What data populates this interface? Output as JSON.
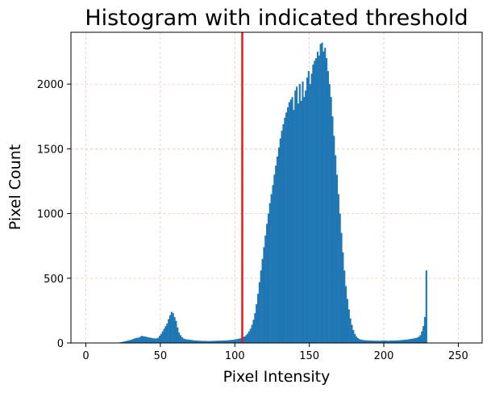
{
  "chart_data": {
    "type": "bar",
    "title": "Histogram with indicated threshold",
    "xlabel": "Pixel Intensity",
    "ylabel": "Pixel Count",
    "xlim": [
      -10,
      266
    ],
    "ylim": [
      0,
      2400
    ],
    "xticks": [
      0,
      50,
      100,
      150,
      200,
      250
    ],
    "yticks": [
      0,
      500,
      1000,
      1500,
      2000
    ],
    "grid": true,
    "grid_color": "#f4b6a8",
    "bar_color": "#1f77b4",
    "threshold": {
      "value": 105,
      "color": "#e41a1c"
    },
    "bin_width": 1,
    "bins_start": 0,
    "values": [
      0,
      0,
      0,
      0,
      0,
      0,
      0,
      0,
      0,
      0,
      0,
      0,
      0,
      0,
      0,
      0,
      0,
      0,
      0,
      0,
      2,
      3,
      4,
      6,
      8,
      11,
      14,
      17,
      20,
      22,
      25,
      30,
      34,
      38,
      40,
      42,
      48,
      55,
      52,
      50,
      48,
      45,
      42,
      40,
      38,
      36,
      34,
      36,
      40,
      55,
      70,
      90,
      110,
      130,
      150,
      185,
      215,
      240,
      230,
      200,
      170,
      120,
      80,
      60,
      45,
      35,
      30,
      28,
      26,
      25,
      24,
      22,
      20,
      20,
      19,
      18,
      17,
      17,
      16,
      16,
      16,
      15,
      15,
      15,
      16,
      16,
      17,
      17,
      18,
      18,
      18,
      19,
      19,
      20,
      20,
      21,
      22,
      23,
      24,
      26,
      28,
      30,
      33,
      36,
      40,
      45,
      50,
      60,
      72,
      90,
      110,
      140,
      180,
      230,
      300,
      380,
      470,
      560,
      650,
      740,
      830,
      920,
      1000,
      1080,
      1150,
      1220,
      1300,
      1370,
      1440,
      1510,
      1580,
      1640,
      1690,
      1740,
      1780,
      1820,
      1860,
      1880,
      1900,
      1800,
      1950,
      1980,
      1850,
      2000,
      1870,
      2020,
      1900,
      1950,
      2050,
      2100,
      2000,
      2080,
      2150,
      2180,
      2200,
      2250,
      2220,
      2310,
      2320,
      2250,
      2280,
      2200,
      2100,
      2000,
      1900,
      1750,
      1600,
      1450,
      1300,
      1150,
      1000,
      850,
      700,
      560,
      440,
      340,
      260,
      190,
      140,
      100,
      70,
      50,
      38,
      30,
      26,
      24,
      22,
      21,
      20,
      20,
      19,
      19,
      18,
      18,
      17,
      18,
      17,
      17,
      18,
      18,
      19,
      18,
      17,
      18,
      19,
      18,
      19,
      19,
      20,
      20,
      21,
      22,
      23,
      24,
      25,
      26,
      28,
      30,
      32,
      34,
      36,
      38,
      42,
      48,
      60,
      90,
      130,
      200,
      560
    ]
  }
}
